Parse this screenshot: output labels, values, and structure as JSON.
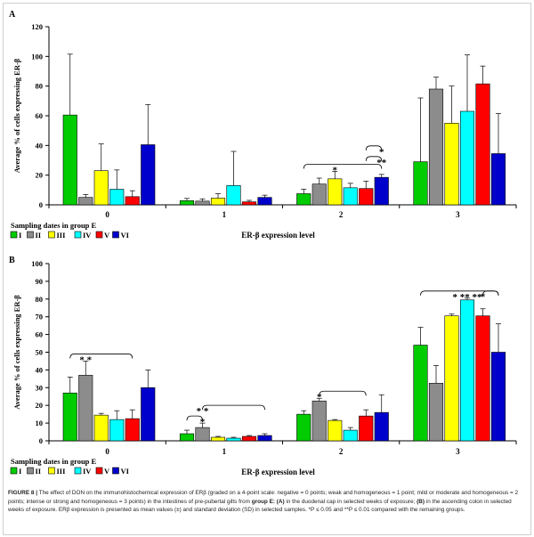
{
  "colors": [
    "#00cc00",
    "#8c8c8c",
    "#ffff00",
    "#00ffff",
    "#ff0000",
    "#0000cc"
  ],
  "chart_data": [
    {
      "type": "bar",
      "panel_label": "A",
      "ylabel": "Average % of cells expressing ER-β",
      "xlabel": "ER-β expression level",
      "ylim": [
        0,
        120
      ],
      "yticks": [
        0,
        20,
        40,
        60,
        80,
        100,
        120
      ],
      "categories": [
        "0",
        "1",
        "2",
        "3"
      ],
      "legend_title": "Sampling dates in group E",
      "series": [
        {
          "name": "I",
          "values": [
            60.5,
            2.8,
            7.5,
            29
          ],
          "errors": [
            41,
            1.5,
            3,
            43
          ]
        },
        {
          "name": "II",
          "values": [
            5,
            2.5,
            14,
            78
          ],
          "errors": [
            2,
            1.5,
            4,
            8
          ]
        },
        {
          "name": "III",
          "values": [
            23,
            4.5,
            17.5,
            55
          ],
          "errors": [
            18,
            3,
            5,
            25
          ]
        },
        {
          "name": "IV",
          "values": [
            10.5,
            13,
            11.5,
            63
          ],
          "errors": [
            13,
            23,
            3,
            38
          ]
        },
        {
          "name": "V",
          "values": [
            5.5,
            2,
            11,
            81.5
          ],
          "errors": [
            4,
            1,
            5,
            12
          ]
        },
        {
          "name": "VI",
          "values": [
            40.5,
            5,
            18.5,
            34.5
          ],
          "errors": [
            27,
            1.5,
            2,
            27
          ]
        }
      ],
      "significance": [
        {
          "category_index": 2,
          "from": 0,
          "to": 5,
          "target": 2,
          "label": "*"
        },
        {
          "category_index": 2,
          "from": 4,
          "to": 5,
          "target": 5,
          "label": "**"
        },
        {
          "category_index": 2,
          "from": 4,
          "to": 5,
          "target": 5,
          "label": "*"
        }
      ]
    },
    {
      "type": "bar",
      "panel_label": "B",
      "ylabel": "Average % of cells expressing ER-β",
      "xlabel": "ER-β expression level",
      "ylim": [
        0,
        100
      ],
      "yticks": [
        0,
        10,
        20,
        30,
        40,
        50,
        60,
        70,
        80,
        90,
        100
      ],
      "categories": [
        "0",
        "1",
        "2",
        "3"
      ],
      "legend_title": "Sampling dates in group E",
      "series": [
        {
          "name": "I",
          "values": [
            27,
            4,
            15,
            54
          ],
          "errors": [
            9,
            2,
            2,
            10
          ]
        },
        {
          "name": "II",
          "values": [
            37,
            7.5,
            22.5,
            32.5
          ],
          "errors": [
            8,
            2.5,
            1.5,
            10
          ]
        },
        {
          "name": "III",
          "values": [
            14.5,
            2,
            11.5,
            70.5
          ],
          "errors": [
            1,
            0.5,
            0.5,
            1
          ]
        },
        {
          "name": "IV",
          "values": [
            12,
            1.5,
            6,
            79.5
          ],
          "errors": [
            5,
            0.5,
            1.5,
            1
          ]
        },
        {
          "name": "V",
          "values": [
            12.5,
            2.5,
            14,
            70.5
          ],
          "errors": [
            5,
            0.5,
            3.5,
            4
          ]
        },
        {
          "name": "VI",
          "values": [
            30,
            3,
            16,
            50
          ],
          "errors": [
            10,
            1,
            10,
            16
          ]
        }
      ],
      "significance": [
        {
          "category_index": 0,
          "from": 0,
          "to": 4,
          "target": 1,
          "label": "* *"
        },
        {
          "category_index": 1,
          "from": 0,
          "to": 1,
          "target": 1,
          "label": "*"
        },
        {
          "category_index": 1,
          "from": 1,
          "to": 5,
          "target": 1,
          "label": "*            *"
        },
        {
          "category_index": 2,
          "from": 1,
          "to": 4,
          "target": 1,
          "label": "*"
        },
        {
          "category_index": 3,
          "from": 0,
          "to": 5,
          "target": 3,
          "label": "* ** **"
        },
        {
          "category_index": 3,
          "from": 4,
          "to": 5,
          "target": 4,
          "label": "*"
        }
      ]
    }
  ],
  "caption": {
    "figure_label": "FIGURE 8 |",
    "text_1": " The effect of DON on the immunohistochemical expression of ERβ (graded on a 4-point scale: negative = 0 points; weak and homogeneous = 1 point; mild or moderate and homogeneous = 2 points; intense or strong and homogeneous = 3 points) in the intestines of pre-pubertal gilts from ",
    "group": "group E: (A)",
    "text_2": " in the duodenal cap in selected weeks of exposure; ",
    "panel_b": "(B)",
    "text_3": " in the ascending colon in selected weeks of exposure. ERβ expression is presented as mean values (±) and standard deviation (SD) in selected samples. *P ≤ 0.05 and **P ≤ 0.01 compared with the remaining groups."
  }
}
